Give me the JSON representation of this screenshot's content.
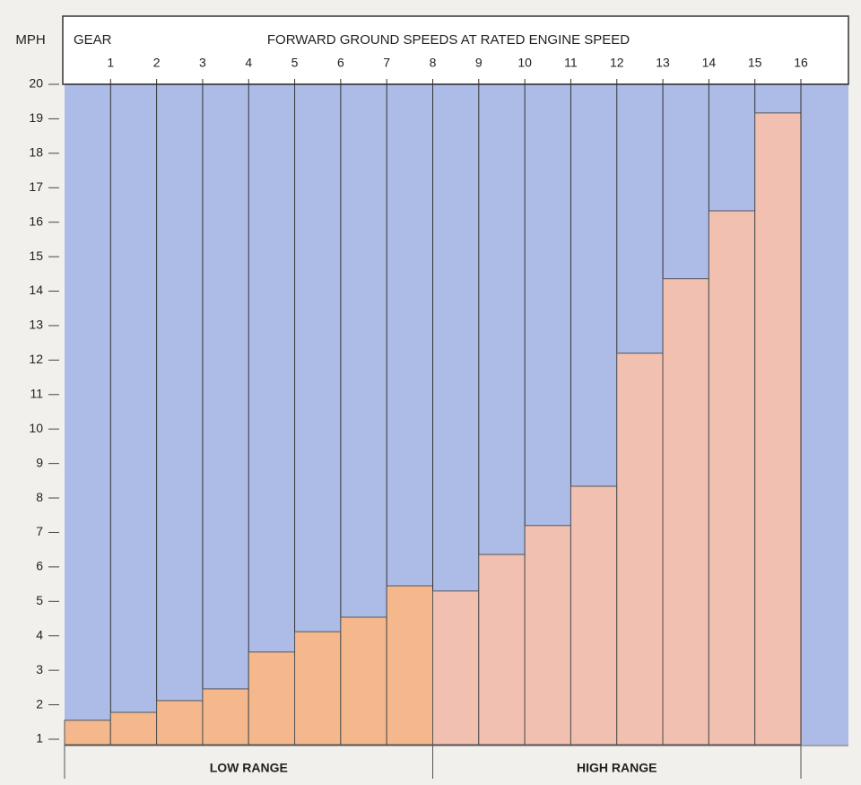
{
  "chart_data": {
    "type": "bar",
    "title": "FORWARD GROUND SPEEDS AT RATED ENGINE SPEED",
    "y_label": "MPH",
    "x_label": "GEAR",
    "ylim": [
      1,
      20
    ],
    "yticks": [
      1,
      2,
      3,
      4,
      5,
      6,
      7,
      8,
      9,
      10,
      11,
      12,
      13,
      14,
      15,
      16,
      17,
      18,
      19,
      20
    ],
    "background_color": "#acbce6",
    "series": [
      {
        "name": "LOW RANGE",
        "color": "#f5b88c",
        "categories": [
          "1",
          "2",
          "3",
          "4",
          "5",
          "6",
          "7",
          "8"
        ],
        "values": [
          1.55,
          1.78,
          2.12,
          2.46,
          3.53,
          4.12,
          4.54,
          5.45
        ]
      },
      {
        "name": "HIGH RANGE",
        "color": "#f1c0b1",
        "categories": [
          "9",
          "10",
          "11",
          "12",
          "13",
          "14",
          "15",
          "16"
        ],
        "values": [
          5.3,
          6.36,
          7.2,
          8.34,
          12.2,
          14.36,
          16.33,
          19.17
        ]
      }
    ]
  }
}
